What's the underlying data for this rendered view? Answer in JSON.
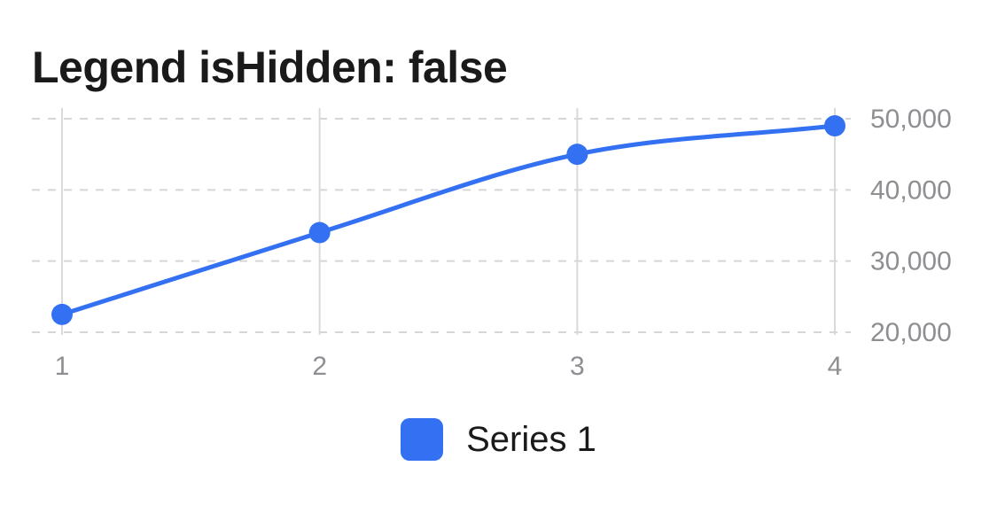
{
  "chart_data": {
    "type": "line",
    "title": "Legend isHidden: false",
    "x": [
      1,
      2,
      3,
      4
    ],
    "x_tick_labels": [
      "1",
      "2",
      "3",
      "4"
    ],
    "y_ticks": [
      20000,
      30000,
      40000,
      50000
    ],
    "y_tick_labels": [
      "20,000",
      "30,000",
      "40,000",
      "50,000"
    ],
    "ylim": [
      20000,
      50000
    ],
    "y_axis_position": "right",
    "grid": {
      "horizontal": "dashed",
      "vertical": "solid"
    },
    "curve": "smooth",
    "legend": {
      "visible": true,
      "placement": "bottom-center"
    },
    "series": [
      {
        "name": "Series 1",
        "color": "#3370f2",
        "values": [
          22500,
          34000,
          45000,
          49000
        ]
      }
    ]
  }
}
